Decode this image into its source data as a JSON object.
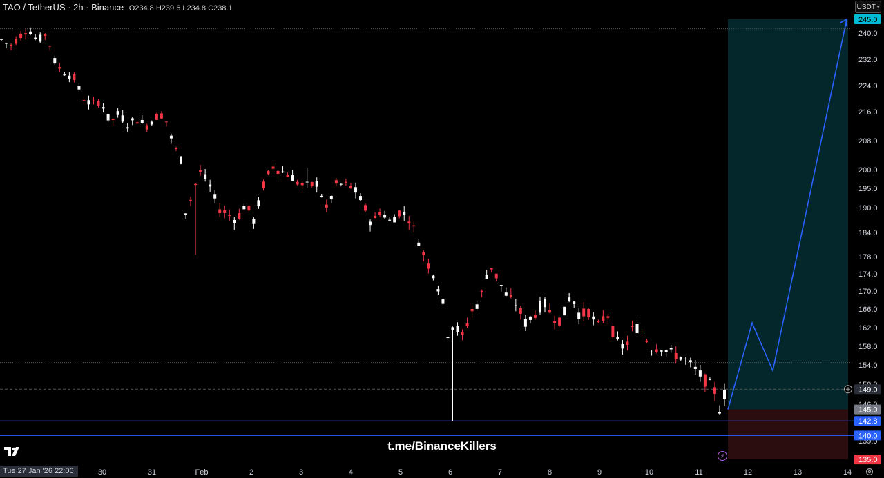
{
  "header": {
    "symbol": "TAO / TetherUS · 2h · Binance",
    "ohlc": "O234.8 H239.6 L234.8 C238.1"
  },
  "currency_button": "USDT",
  "watermark": "t.me/BinanceKillers",
  "crosshair_date": "Tue 27 Jan '26   22:00",
  "colors": {
    "up": "#ffffff",
    "down": "#f23645",
    "line": "#2962ff",
    "profit_zone": "#03272b",
    "loss_zone": "#2b0d10"
  },
  "chart_data": {
    "type": "candlestick",
    "price_axis": {
      "ticks": [
        240.0,
        232.0,
        224.0,
        216.0,
        208.0,
        200.0,
        195.0,
        190.0,
        184.0,
        178.0,
        174.0,
        170.0,
        166.0,
        162.0,
        158.0,
        154.0,
        150.0,
        146.0,
        139.0
      ],
      "labels": [
        {
          "value": 245.0,
          "color": "#00bcd4",
          "text_color": "#000000"
        },
        {
          "value": 149.0,
          "color": "#2a2e39",
          "text_color": "#ffffff"
        },
        {
          "value": 145.0,
          "color": "#787b86",
          "text_color": "#ffffff"
        },
        {
          "value": 142.8,
          "color": "#2962ff",
          "text_color": "#ffffff"
        },
        {
          "value": 140.0,
          "color": "#2962ff",
          "text_color": "#ffffff"
        },
        {
          "value": 135.0,
          "color": "#f23645",
          "text_color": "#ffffff"
        }
      ]
    },
    "time_axis": {
      "labels": [
        "30",
        "31",
        "Feb",
        "2",
        "3",
        "4",
        "5",
        "6",
        "7",
        "8",
        "9",
        "10",
        "11",
        "12",
        "13",
        "14"
      ]
    },
    "horizontal_lines": [
      {
        "value": 241.6,
        "style": "dotted",
        "color": "#555555"
      },
      {
        "value": 154.5,
        "style": "dotted",
        "color": "#555555"
      },
      {
        "value": 149.0,
        "style": "dashed",
        "color": "#555555"
      },
      {
        "value": 142.8,
        "style": "solid",
        "color": "#2962ff"
      },
      {
        "value": 140.0,
        "style": "solid",
        "color": "#2962ff"
      }
    ],
    "position": {
      "entry": 145.0,
      "target": 245.0,
      "stop": 135.0
    },
    "projection_path": [
      145.0,
      163.0,
      152.8,
      245.0
    ],
    "ohlc_path": [
      [
        0.0,
        238.0
      ],
      [
        0.01,
        236.0
      ],
      [
        0.02,
        239.0
      ],
      [
        0.03,
        241.6
      ],
      [
        0.04,
        237.5
      ],
      [
        0.05,
        240.0
      ],
      [
        0.06,
        230.5
      ],
      [
        0.07,
        228.0
      ],
      [
        0.08,
        226.5
      ],
      [
        0.09,
        220.5
      ],
      [
        0.1,
        218.0
      ],
      [
        0.11,
        219.5
      ],
      [
        0.12,
        213.0
      ],
      [
        0.13,
        215.5
      ],
      [
        0.14,
        212.5
      ],
      [
        0.15,
        214.0
      ],
      [
        0.16,
        212.0
      ],
      [
        0.17,
        214.5
      ],
      [
        0.18,
        215.5
      ],
      [
        0.19,
        207.0
      ],
      [
        0.2,
        202.0
      ],
      [
        0.205,
        186.0
      ],
      [
        0.21,
        193.0
      ],
      [
        0.22,
        199.5
      ],
      [
        0.23,
        196.0
      ],
      [
        0.24,
        190.0
      ],
      [
        0.25,
        188.5
      ],
      [
        0.26,
        187.0
      ],
      [
        0.27,
        191.0
      ],
      [
        0.28,
        186.5
      ],
      [
        0.29,
        196.0
      ],
      [
        0.3,
        201.0
      ],
      [
        0.31,
        199.5
      ],
      [
        0.32,
        198.5
      ],
      [
        0.33,
        196.0
      ],
      [
        0.34,
        195.5
      ],
      [
        0.35,
        196.5
      ],
      [
        0.36,
        189.5
      ],
      [
        0.37,
        196.0
      ],
      [
        0.38,
        196.0
      ],
      [
        0.39,
        195.0
      ],
      [
        0.4,
        191.0
      ],
      [
        0.41,
        186.0
      ],
      [
        0.42,
        189.5
      ],
      [
        0.43,
        186.5
      ],
      [
        0.44,
        189.0
      ],
      [
        0.45,
        188.0
      ],
      [
        0.46,
        183.0
      ],
      [
        0.47,
        177.0
      ],
      [
        0.48,
        173.5
      ],
      [
        0.49,
        166.0
      ],
      [
        0.495,
        159.5
      ],
      [
        0.5,
        163.0
      ],
      [
        0.51,
        160.0
      ],
      [
        0.52,
        165.5
      ],
      [
        0.53,
        168.0
      ],
      [
        0.54,
        176.5
      ],
      [
        0.55,
        172.5
      ],
      [
        0.56,
        168.5
      ],
      [
        0.57,
        167.0
      ],
      [
        0.58,
        163.0
      ],
      [
        0.59,
        165.0
      ],
      [
        0.6,
        167.5
      ],
      [
        0.61,
        164.5
      ],
      [
        0.62,
        163.5
      ],
      [
        0.63,
        169.5
      ],
      [
        0.64,
        164.5
      ],
      [
        0.65,
        165.5
      ],
      [
        0.66,
        162.0
      ],
      [
        0.67,
        165.5
      ],
      [
        0.68,
        159.0
      ],
      [
        0.69,
        157.5
      ],
      [
        0.7,
        162.5
      ],
      [
        0.71,
        161.0
      ],
      [
        0.72,
        157.5
      ],
      [
        0.73,
        158.0
      ],
      [
        0.74,
        156.5
      ],
      [
        0.75,
        156.0
      ],
      [
        0.76,
        154.5
      ],
      [
        0.77,
        152.5
      ],
      [
        0.78,
        150.5
      ],
      [
        0.79,
        148.5
      ],
      [
        0.795,
        145.0
      ],
      [
        0.8,
        148.0
      ]
    ]
  }
}
